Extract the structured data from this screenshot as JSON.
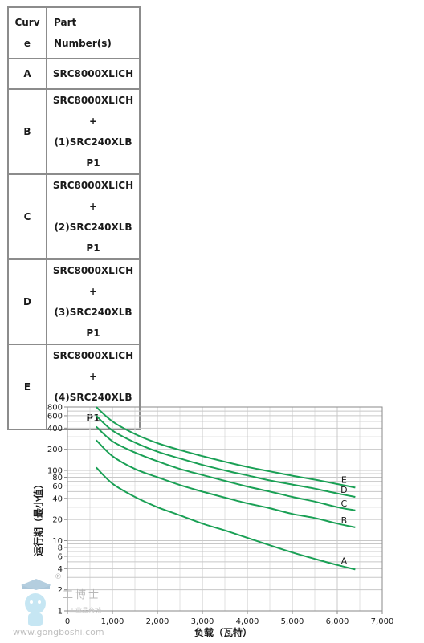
{
  "table": {
    "headers": {
      "curve": "Curve",
      "part": "Part Number(s)"
    },
    "rows": [
      {
        "curve": "A",
        "part": [
          "SRC8000XLICH"
        ]
      },
      {
        "curve": "B",
        "part": [
          "SRC8000XLICH",
          "+ (1)SRC240XLB",
          "P1"
        ]
      },
      {
        "curve": "C",
        "part": [
          "SRC8000XLICH",
          "+ (2)SRC240XLB",
          "P1"
        ]
      },
      {
        "curve": "D",
        "part": [
          "SRC8000XLICH",
          "+ (3)SRC240XLB",
          "P1"
        ]
      },
      {
        "curve": "E",
        "part": [
          "SRC8000XLICH",
          "+ (4)SRC240XLB",
          "P1"
        ]
      }
    ]
  },
  "chart_data": {
    "type": "line",
    "title": "",
    "xlabel": "负载（瓦特）",
    "ylabel": "运行期（最小值）",
    "xlim": [
      0,
      7000
    ],
    "ylim": [
      1,
      800
    ],
    "yscale": "log",
    "grid": true,
    "xticks": [
      0,
      1000,
      2000,
      3000,
      4000,
      5000,
      6000,
      7000
    ],
    "xtick_labels": [
      "0",
      "1,000",
      "2,000",
      "3,000",
      "4,000",
      "5,000",
      "6,000",
      "7,000"
    ],
    "yticks": [
      1,
      2,
      4,
      6,
      8,
      10,
      20,
      40,
      60,
      80,
      100,
      200,
      400,
      600,
      800
    ],
    "ytick_labels": [
      "1",
      "2",
      "4",
      "6",
      "8",
      "10",
      "20",
      "40",
      "60",
      "80",
      "100",
      "200",
      "400",
      "600",
      "800"
    ],
    "line_color": "#1aa055",
    "series": [
      {
        "name": "A",
        "x": [
          640,
          1000,
          1500,
          2000,
          2500,
          3000,
          3500,
          4000,
          4500,
          5000,
          5500,
          6000,
          6400
        ],
        "y": [
          110,
          65,
          42,
          30,
          23,
          17.5,
          14,
          11,
          8.6,
          6.8,
          5.5,
          4.5,
          3.9
        ]
      },
      {
        "name": "B",
        "x": [
          640,
          1000,
          1500,
          2000,
          2500,
          3000,
          3500,
          4000,
          4500,
          5000,
          5500,
          6000,
          6400
        ],
        "y": [
          270,
          160,
          105,
          80,
          62,
          50,
          41,
          34,
          29,
          24,
          21,
          17.5,
          15.5
        ]
      },
      {
        "name": "C",
        "x": [
          640,
          1000,
          1500,
          2000,
          2500,
          3000,
          3500,
          4000,
          4500,
          5000,
          5500,
          6000,
          6400
        ],
        "y": [
          420,
          260,
          180,
          135,
          105,
          86,
          71,
          59,
          50,
          42,
          36,
          30,
          27
        ]
      },
      {
        "name": "D",
        "x": [
          640,
          1000,
          1500,
          2000,
          2500,
          3000,
          3500,
          4000,
          4500,
          5000,
          5500,
          6000,
          6400
        ],
        "y": [
          600,
          370,
          250,
          185,
          148,
          120,
          100,
          85,
          72,
          63,
          55,
          47,
          42
        ]
      },
      {
        "name": "E",
        "x": [
          640,
          1000,
          1500,
          2000,
          2500,
          3000,
          3500,
          4000,
          4500,
          5000,
          5500,
          6000,
          6400
        ],
        "y": [
          800,
          500,
          330,
          245,
          195,
          160,
          133,
          112,
          97,
          84,
          74,
          64,
          57
        ]
      }
    ]
  },
  "watermark": {
    "brand": "工博士",
    "subtitle": "工业品商城",
    "url": "www.gongboshi.com",
    "registered": "®"
  }
}
